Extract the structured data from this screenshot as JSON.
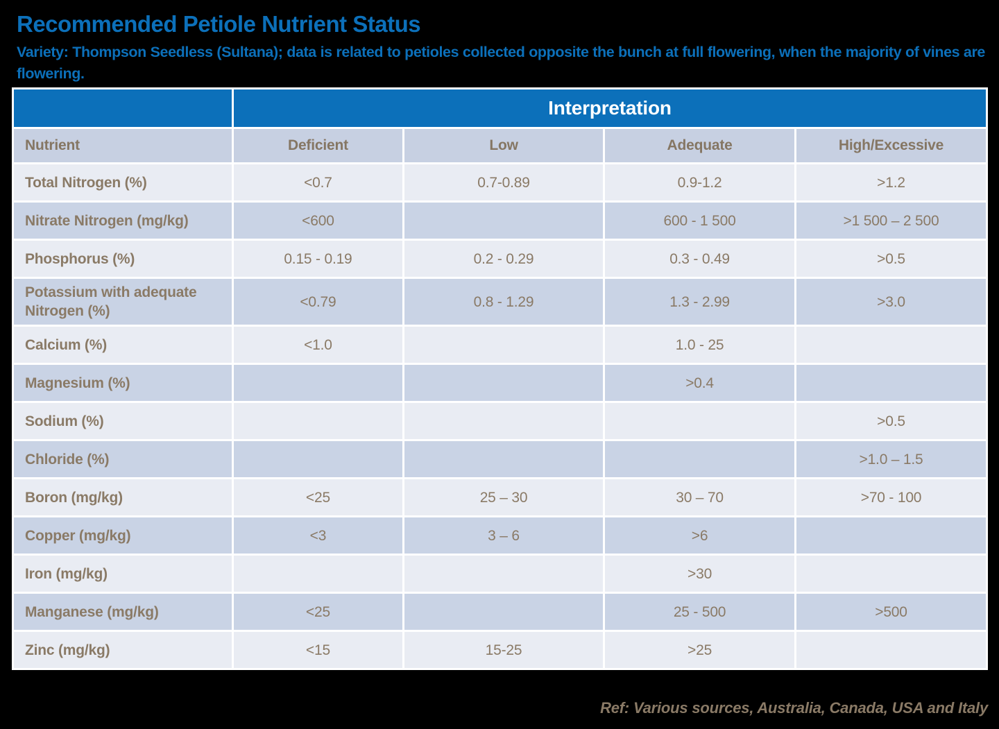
{
  "page": {
    "title": "Recommended Petiole Nutrient Status",
    "subtitle": "Variety: Thompson Seedless (Sultana); data is related to petioles collected opposite the bunch at full flowering, when the majority of vines are flowering.",
    "footer": "Ref: Various sources, Australia, Canada, USA and Italy"
  },
  "colors": {
    "background": "#000000",
    "accent_blue": "#0c70ba",
    "header_text": "#ffffff",
    "subheader_bg": "#c7d0e2",
    "row_light_bg": "#e9ecf3",
    "row_dark_bg": "#c9d3e5",
    "body_text": "#8a7a66",
    "grid_lines": "#ffffff"
  },
  "table": {
    "group_header": "Interpretation",
    "columns": [
      "Nutrient",
      "Deficient",
      "Low",
      "Adequate",
      "High/Excessive"
    ],
    "rows": [
      {
        "nutrient": "Total Nitrogen (%)",
        "deficient": "<0.7",
        "low": "0.7-0.89",
        "adequate": "0.9-1.2",
        "high": ">1.2"
      },
      {
        "nutrient": "Nitrate Nitrogen (mg/kg)",
        "deficient": "<600",
        "low": "",
        "adequate": "600 - 1 500",
        "high": ">1 500 – 2 500"
      },
      {
        "nutrient": "Phosphorus (%)",
        "deficient": "0.15 - 0.19",
        "low": "0.2 - 0.29",
        "adequate": "0.3 - 0.49",
        "high": ">0.5"
      },
      {
        "nutrient": "Potassium with adequate Nitrogen (%)",
        "deficient": "<0.79",
        "low": "0.8 - 1.29",
        "adequate": "1.3 - 2.99",
        "high": ">3.0"
      },
      {
        "nutrient": "Calcium (%)",
        "deficient": "<1.0",
        "low": "",
        "adequate": "1.0 - 25",
        "high": ""
      },
      {
        "nutrient": "Magnesium (%)",
        "deficient": "",
        "low": "",
        "adequate": ">0.4",
        "high": ""
      },
      {
        "nutrient": "Sodium (%)",
        "deficient": "",
        "low": "",
        "adequate": "",
        "high": ">0.5"
      },
      {
        "nutrient": "Chloride (%)",
        "deficient": "",
        "low": "",
        "adequate": "",
        "high": ">1.0 – 1.5"
      },
      {
        "nutrient": "Boron (mg/kg)",
        "deficient": "<25",
        "low": "25 – 30",
        "adequate": "30 – 70",
        "high": ">70 - 100"
      },
      {
        "nutrient": "Copper (mg/kg)",
        "deficient": "<3",
        "low": "3 – 6",
        "adequate": ">6",
        "high": ""
      },
      {
        "nutrient": "Iron (mg/kg)",
        "deficient": "",
        "low": "",
        "adequate": ">30",
        "high": ""
      },
      {
        "nutrient": "Manganese (mg/kg)",
        "deficient": "<25",
        "low": "",
        "adequate": "25 - 500",
        "high": ">500"
      },
      {
        "nutrient": "Zinc (mg/kg)",
        "deficient": "<15",
        "low": "15-25",
        "adequate": ">25",
        "high": ""
      }
    ]
  }
}
